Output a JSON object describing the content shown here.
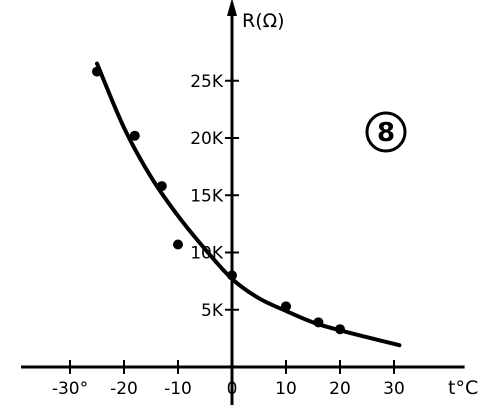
{
  "chart_data": {
    "type": "scatter",
    "ylabel": "R(Ω)",
    "xlabel": "t°C",
    "figure_label": "8",
    "x_ticks": [
      -30,
      -20,
      -10,
      0,
      10,
      20,
      30
    ],
    "x_tick_labels": [
      "-30°",
      "-20",
      "-10",
      "0",
      "10",
      "20",
      "30"
    ],
    "y_ticks": [
      5000,
      10000,
      15000,
      20000,
      25000
    ],
    "y_tick_labels": [
      "5K",
      "10K",
      "15K",
      "20K",
      "25K"
    ],
    "xlim": [
      -40,
      44
    ],
    "ylim": [
      -1200,
      31000
    ],
    "grid": false,
    "series": [
      {
        "kind": "points",
        "x": [
          -25,
          -18,
          -13,
          -10,
          0,
          10,
          16,
          20
        ],
        "y": [
          25800,
          20200,
          15800,
          10700,
          8000,
          5300,
          3900,
          3300
        ]
      },
      {
        "kind": "fitted-curve",
        "x": [
          -25,
          -20,
          -15,
          -10,
          -5,
          0,
          5,
          10,
          15,
          20,
          25,
          31
        ],
        "y": [
          26500,
          20900,
          16600,
          13200,
          10300,
          7700,
          6000,
          4900,
          3900,
          3200,
          2600,
          1900
        ]
      }
    ]
  }
}
